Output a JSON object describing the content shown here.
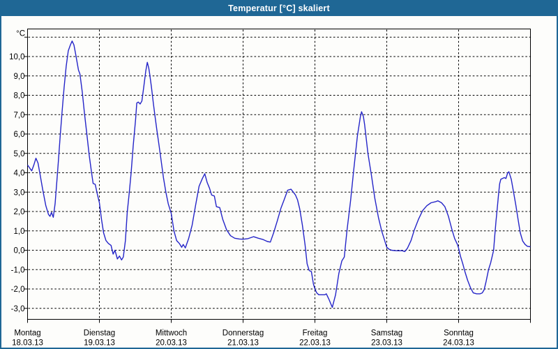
{
  "window": {
    "title": "Temperatur [°C] skaliert"
  },
  "colors": {
    "titlebar_bg": "#1F6795",
    "titlebar_text": "#FFFFFF",
    "window_border": "#1F6795",
    "line_color": "#2424C8",
    "grid_color": "#000000",
    "axis_color": "#000000",
    "background": "#FDFDFB"
  },
  "chart_data": {
    "type": "line",
    "title": "Temperatur [°C] skaliert",
    "ylabel": "°C",
    "ylim": [
      -3.55,
      11.45
    ],
    "grid": "dashed horizontal and vertical per day",
    "legend_position": "none",
    "y_ticks": [
      {
        "value": 10,
        "label": "10,0"
      },
      {
        "value": 9,
        "label": "9,0"
      },
      {
        "value": 8,
        "label": "8,0"
      },
      {
        "value": 7,
        "label": "7,0"
      },
      {
        "value": 6,
        "label": "6,0"
      },
      {
        "value": 5,
        "label": "5,0"
      },
      {
        "value": 4,
        "label": "4,0"
      },
      {
        "value": 3,
        "label": "3,0"
      },
      {
        "value": 2,
        "label": "2,0"
      },
      {
        "value": 1,
        "label": "1,0"
      },
      {
        "value": 0,
        "label": "0,0"
      },
      {
        "value": -1,
        "label": "-1,0"
      },
      {
        "value": -2,
        "label": "-2,0"
      },
      {
        "value": -3,
        "label": "-3,0"
      }
    ],
    "unlabeled_gridlines": [
      11
    ],
    "x_span_hours": 168,
    "x_days": [
      {
        "name": "Montag",
        "date": "18.03.13"
      },
      {
        "name": "Dienstag",
        "date": "19.03.13"
      },
      {
        "name": "Mittwoch",
        "date": "20.03.13"
      },
      {
        "name": "Donnerstag",
        "date": "21.03.13"
      },
      {
        "name": "Freitag",
        "date": "22.03.13"
      },
      {
        "name": "Samstag",
        "date": "23.03.13"
      },
      {
        "name": "Sonntag",
        "date": "24.03.13"
      }
    ],
    "series": [
      {
        "name": "Temperatur [°C]",
        "color": "#2424C8",
        "points": [
          [
            0,
            4.4
          ],
          [
            0.9,
            4.2
          ],
          [
            1.4,
            4.1
          ],
          [
            2.1,
            4.4
          ],
          [
            2.8,
            4.75
          ],
          [
            3.5,
            4.5
          ],
          [
            4.2,
            3.9
          ],
          [
            5.1,
            3.1
          ],
          [
            6.1,
            2.3
          ],
          [
            7,
            1.85
          ],
          [
            7.5,
            1.75
          ],
          [
            8,
            1.95
          ],
          [
            8.6,
            1.7
          ],
          [
            9.2,
            2.4
          ],
          [
            9.8,
            3.6
          ],
          [
            10.3,
            4.6
          ],
          [
            10.9,
            5.9
          ],
          [
            11.5,
            7.1
          ],
          [
            12.2,
            8.4
          ],
          [
            12.9,
            9.5
          ],
          [
            13.6,
            10.3
          ],
          [
            14.3,
            10.6
          ],
          [
            14.9,
            10.8
          ],
          [
            15.5,
            10.6
          ],
          [
            16.1,
            10.1
          ],
          [
            17,
            9.3
          ],
          [
            17.5,
            9.1
          ],
          [
            18.3,
            8.15
          ],
          [
            19,
            7.1
          ],
          [
            19.8,
            6
          ],
          [
            20.6,
            4.9
          ],
          [
            21.4,
            4
          ],
          [
            21.9,
            3.45
          ],
          [
            22.6,
            3.4
          ],
          [
            23.3,
            2.9
          ],
          [
            24,
            2.45
          ],
          [
            24.7,
            1.6
          ],
          [
            25.4,
            0.9
          ],
          [
            26.2,
            0.5
          ],
          [
            27,
            0.35
          ],
          [
            27.9,
            0.25
          ],
          [
            28.6,
            -0.2
          ],
          [
            29.2,
            0
          ],
          [
            30,
            -0.45
          ],
          [
            30.7,
            -0.3
          ],
          [
            31.4,
            -0.5
          ],
          [
            32,
            -0.35
          ],
          [
            32.7,
            0.5
          ],
          [
            33.3,
            1.95
          ],
          [
            34,
            3
          ],
          [
            34.6,
            4
          ],
          [
            35.3,
            5.4
          ],
          [
            36.1,
            6.75
          ],
          [
            36.5,
            7.6
          ],
          [
            37,
            7.65
          ],
          [
            37.6,
            7.55
          ],
          [
            38.2,
            7.7
          ],
          [
            38.8,
            8.4
          ],
          [
            39.5,
            9.25
          ],
          [
            40,
            9.7
          ],
          [
            40.5,
            9.4
          ],
          [
            40.8,
            9.1
          ],
          [
            41.4,
            8.4
          ],
          [
            42,
            7.6
          ],
          [
            42.6,
            6.9
          ],
          [
            43.2,
            6.2
          ],
          [
            43.9,
            5.45
          ],
          [
            44.7,
            4.55
          ],
          [
            45.4,
            3.75
          ],
          [
            46.2,
            3
          ],
          [
            47,
            2.4
          ],
          [
            48,
            1.9
          ],
          [
            48.9,
            1
          ],
          [
            49.8,
            0.5
          ],
          [
            50.7,
            0.35
          ],
          [
            51.5,
            0.15
          ],
          [
            52,
            0.3
          ],
          [
            52.7,
            0.12
          ],
          [
            53.8,
            0.6
          ],
          [
            55,
            1.3
          ],
          [
            56.1,
            2.3
          ],
          [
            57.3,
            3.3
          ],
          [
            58.4,
            3.7
          ],
          [
            59.2,
            3.95
          ],
          [
            60,
            3.5
          ],
          [
            60.8,
            3.2
          ],
          [
            61.5,
            2.85
          ],
          [
            62.4,
            2.8
          ],
          [
            63.1,
            2.25
          ],
          [
            64.2,
            2.2
          ],
          [
            65.2,
            1.6
          ],
          [
            66.5,
            1.05
          ],
          [
            67.8,
            0.75
          ],
          [
            69.2,
            0.62
          ],
          [
            70.8,
            0.58
          ],
          [
            72,
            0.57
          ],
          [
            73.6,
            0.6
          ],
          [
            75.5,
            0.7
          ],
          [
            77.1,
            0.62
          ],
          [
            78.7,
            0.55
          ],
          [
            80.1,
            0.45
          ],
          [
            81.1,
            0.42
          ],
          [
            82.2,
            0.9
          ],
          [
            83.4,
            1.5
          ],
          [
            84.6,
            2.15
          ],
          [
            85.7,
            2.6
          ],
          [
            86.9,
            3.1
          ],
          [
            88,
            3.15
          ],
          [
            88.8,
            3
          ],
          [
            89.5,
            2.85
          ],
          [
            90.2,
            2.6
          ],
          [
            90.9,
            2.15
          ],
          [
            91.8,
            1.3
          ],
          [
            92.7,
            0.3
          ],
          [
            93.4,
            -0.7
          ],
          [
            94.1,
            -1.05
          ],
          [
            94.8,
            -1.1
          ],
          [
            95.5,
            -1.75
          ],
          [
            96,
            -2
          ],
          [
            96.6,
            -2.2
          ],
          [
            97.3,
            -2.3
          ],
          [
            98.4,
            -2.3
          ],
          [
            99.3,
            -2.3
          ],
          [
            99.8,
            -2.25
          ],
          [
            100.6,
            -2.5
          ],
          [
            101.8,
            -2.95
          ],
          [
            102.9,
            -2.3
          ],
          [
            104,
            -1.2
          ],
          [
            105,
            -0.55
          ],
          [
            105.8,
            -0.35
          ],
          [
            106.7,
            1
          ],
          [
            107.9,
            2.55
          ],
          [
            109,
            4.2
          ],
          [
            110.2,
            5.9
          ],
          [
            111.2,
            6.9
          ],
          [
            111.6,
            7.15
          ],
          [
            112.2,
            6.9
          ],
          [
            112.6,
            6.5
          ],
          [
            113.7,
            5
          ],
          [
            114.9,
            3.85
          ],
          [
            116,
            2.7
          ],
          [
            117.2,
            1.7
          ],
          [
            118.3,
            1
          ],
          [
            119.3,
            0.5
          ],
          [
            120,
            0.15
          ],
          [
            120.8,
            0.05
          ],
          [
            121.6,
            0
          ],
          [
            122.8,
            -0.02
          ],
          [
            124,
            -0.03
          ],
          [
            125.1,
            -0.02
          ],
          [
            126,
            -0.07
          ],
          [
            126.9,
            0.1
          ],
          [
            128.1,
            0.5
          ],
          [
            129.2,
            1.05
          ],
          [
            130.6,
            1.6
          ],
          [
            132,
            2.05
          ],
          [
            133.4,
            2.3
          ],
          [
            134.8,
            2.45
          ],
          [
            136.2,
            2.5
          ],
          [
            137.1,
            2.55
          ],
          [
            138.3,
            2.45
          ],
          [
            139.4,
            2.25
          ],
          [
            140.6,
            1.75
          ],
          [
            141.8,
            1.05
          ],
          [
            142.7,
            0.6
          ],
          [
            143.6,
            0.3
          ],
          [
            144,
            0.1
          ],
          [
            144.6,
            -0.3
          ],
          [
            145.4,
            -0.7
          ],
          [
            146.1,
            -1.1
          ],
          [
            147,
            -1.55
          ],
          [
            148,
            -1.95
          ],
          [
            148.9,
            -2.2
          ],
          [
            150,
            -2.25
          ],
          [
            151.2,
            -2.25
          ],
          [
            151.9,
            -2.2
          ],
          [
            152.5,
            -2.05
          ],
          [
            153.2,
            -1.6
          ],
          [
            154,
            -1
          ],
          [
            154.7,
            -0.66
          ],
          [
            155.7,
            0
          ],
          [
            156.1,
            0.78
          ],
          [
            156.5,
            1.5
          ],
          [
            156.9,
            2.16
          ],
          [
            157.3,
            2.82
          ],
          [
            157.7,
            3.42
          ],
          [
            158.1,
            3.66
          ],
          [
            158.6,
            3.7
          ],
          [
            159.3,
            3.75
          ],
          [
            159.8,
            3.7
          ],
          [
            160.4,
            4
          ],
          [
            160.8,
            4.05
          ],
          [
            161.6,
            3.66
          ],
          [
            162.3,
            3.06
          ],
          [
            163.1,
            2.34
          ],
          [
            163.9,
            1.56
          ],
          [
            164.6,
            0.9
          ],
          [
            165.4,
            0.48
          ],
          [
            166.2,
            0.3
          ],
          [
            167,
            0.2
          ],
          [
            168,
            0.18
          ]
        ]
      }
    ]
  }
}
